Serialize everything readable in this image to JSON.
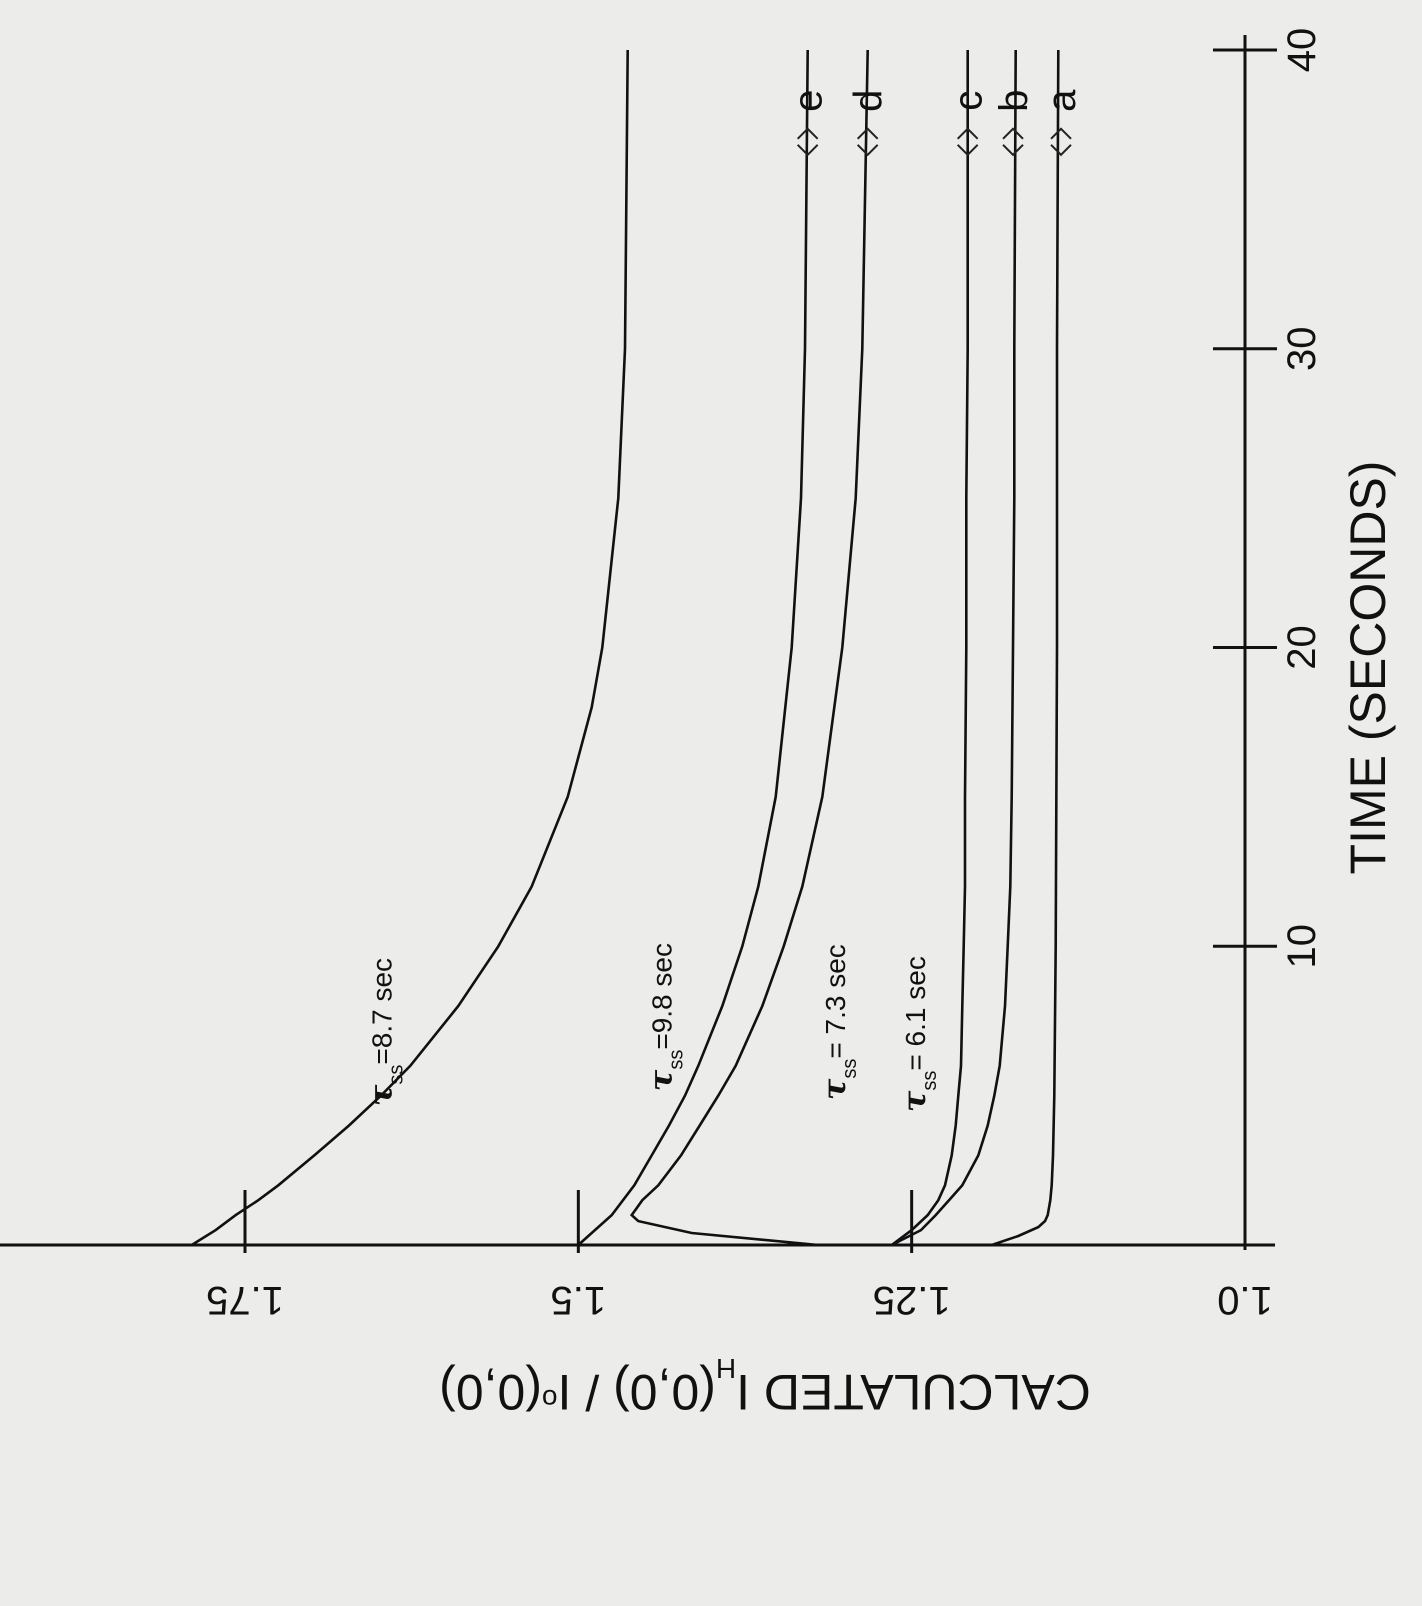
{
  "chart_data": {
    "type": "line",
    "xlabel": "TIME (SECONDS)",
    "ylabel": {
      "prefix": "CALCULATED",
      "main": "I",
      "sub1": "H",
      "mid": "(0,0) / I",
      "sub2": "o",
      "tail": "(0,0)"
    },
    "xlim": [
      0,
      40
    ],
    "ylim": [
      1.0,
      1.8
    ],
    "x_ticks": [
      10,
      20,
      30,
      40
    ],
    "x_tick_labels": [
      "10",
      "20",
      "30",
      "40"
    ],
    "y_ticks": [
      1.0,
      1.25,
      1.5,
      1.75
    ],
    "y_tick_labels": [
      "1.0",
      "1.25",
      "1.5",
      "1.75"
    ],
    "series": [
      {
        "name": "a",
        "x": [
          0,
          0.3,
          0.6,
          0.8,
          1.0,
          1.5,
          2,
          3,
          5,
          10,
          20,
          30,
          40
        ],
        "y": [
          1.19,
          1.17,
          1.155,
          1.15,
          1.148,
          1.146,
          1.145,
          1.144,
          1.143,
          1.142,
          1.141,
          1.141,
          1.14
        ]
      },
      {
        "name": "b",
        "x": [
          0,
          0.5,
          1,
          1.5,
          2,
          3,
          4,
          5,
          6,
          8,
          10,
          12,
          15,
          20,
          25,
          30,
          40
        ],
        "y": [
          1.265,
          1.243,
          1.232,
          1.222,
          1.212,
          1.2,
          1.193,
          1.188,
          1.184,
          1.18,
          1.178,
          1.176,
          1.175,
          1.174,
          1.173,
          1.173,
          1.172
        ]
      },
      {
        "name": "c",
        "x": [
          0,
          0.5,
          1,
          1.5,
          2,
          3,
          4,
          5,
          6,
          8,
          10,
          12,
          15,
          20,
          25,
          30,
          40
        ],
        "y": [
          1.265,
          1.25,
          1.238,
          1.23,
          1.225,
          1.22,
          1.217,
          1.215,
          1.213,
          1.212,
          1.211,
          1.21,
          1.21,
          1.209,
          1.209,
          1.208,
          1.208
        ]
      },
      {
        "name": "d",
        "x": [
          0,
          0.4,
          0.8,
          1,
          1.5,
          2,
          3,
          4,
          5,
          6,
          8,
          10,
          12,
          15,
          20,
          25,
          30,
          40
        ],
        "y": [
          1.32,
          1.415,
          1.455,
          1.46,
          1.452,
          1.44,
          1.423,
          1.409,
          1.395,
          1.382,
          1.362,
          1.346,
          1.332,
          1.317,
          1.302,
          1.292,
          1.287,
          1.283
        ]
      },
      {
        "name": "e",
        "x": [
          0,
          1,
          2,
          3,
          4,
          5,
          6,
          8,
          10,
          12,
          15,
          20,
          25,
          30,
          40
        ],
        "y": [
          1.5,
          1.475,
          1.458,
          1.445,
          1.432,
          1.42,
          1.41,
          1.392,
          1.377,
          1.365,
          1.352,
          1.34,
          1.333,
          1.33,
          1.328
        ]
      },
      {
        "name": "",
        "x": [
          0,
          0.5,
          1,
          1.5,
          2,
          3,
          4,
          5,
          6,
          8,
          10,
          12,
          15,
          18,
          20,
          25,
          30,
          40
        ],
        "y": [
          1.79,
          1.772,
          1.757,
          1.74,
          1.725,
          1.698,
          1.672,
          1.648,
          1.626,
          1.59,
          1.56,
          1.535,
          1.508,
          1.49,
          1.482,
          1.47,
          1.465,
          1.463
        ]
      }
    ],
    "annotations": [
      {
        "tau": "τ",
        "sub": "ss",
        "text": "=8.7 sec",
        "x": 9.0,
        "y": 1.64
      },
      {
        "tau": "τ",
        "sub": "ss",
        "text": "=9.8 sec",
        "x": 9.5,
        "y": 1.43
      },
      {
        "tau": "τ",
        "sub": "ss",
        "text": "= 7.3 sec",
        "x": 9.2,
        "y": 1.3
      },
      {
        "tau": "τ",
        "sub": "ss",
        "text": "= 6.1 sec",
        "x": 8.8,
        "y": 1.24
      }
    ],
    "series_labels": [
      {
        "text": "a",
        "y": 1.138
      },
      {
        "text": "b",
        "y": 1.174
      },
      {
        "text": "c",
        "y": 1.208
      },
      {
        "text": "d",
        "y": 1.283
      },
      {
        "text": "e",
        "y": 1.328
      }
    ],
    "grid": false,
    "legend": "none"
  }
}
